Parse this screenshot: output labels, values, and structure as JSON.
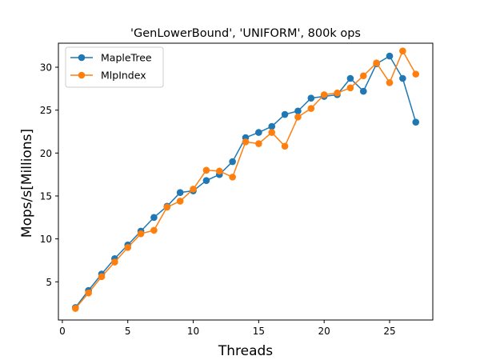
{
  "chart_data": {
    "type": "line",
    "title": "'GenLowerBound', 'UNIFORM', 800k ops",
    "xlabel": "Threads",
    "ylabel": "Mops/s[Millions]",
    "xlim": [
      -0.3,
      28.3
    ],
    "ylim": [
      0.55,
      32.8
    ],
    "xticks": [
      0,
      5,
      10,
      15,
      20,
      25
    ],
    "yticks": [
      5,
      10,
      15,
      20,
      25,
      30
    ],
    "x": [
      1,
      2,
      3,
      4,
      5,
      6,
      7,
      8,
      9,
      10,
      11,
      12,
      13,
      14,
      15,
      16,
      17,
      18,
      19,
      20,
      21,
      22,
      23,
      24,
      25,
      26,
      27
    ],
    "series": [
      {
        "name": "MapleTree",
        "color": "#1f77b4",
        "values": [
          2.0,
          4.0,
          5.9,
          7.7,
          9.3,
          10.9,
          12.5,
          13.8,
          15.4,
          15.6,
          16.8,
          17.5,
          19.0,
          21.8,
          22.4,
          23.1,
          24.5,
          24.9,
          26.4,
          26.6,
          26.8,
          28.7,
          27.2,
          30.4,
          31.3,
          28.7,
          23.6
        ]
      },
      {
        "name": "MlpIndex",
        "color": "#ff7f0e",
        "values": [
          1.9,
          3.7,
          5.6,
          7.3,
          9.0,
          10.6,
          11.0,
          13.7,
          14.4,
          15.8,
          18.0,
          17.9,
          17.2,
          21.3,
          21.1,
          22.4,
          20.8,
          24.2,
          25.2,
          26.8,
          27.0,
          27.6,
          29.0,
          30.5,
          28.2,
          31.9,
          29.2
        ]
      }
    ],
    "grid": false,
    "legend": "upper-left"
  }
}
